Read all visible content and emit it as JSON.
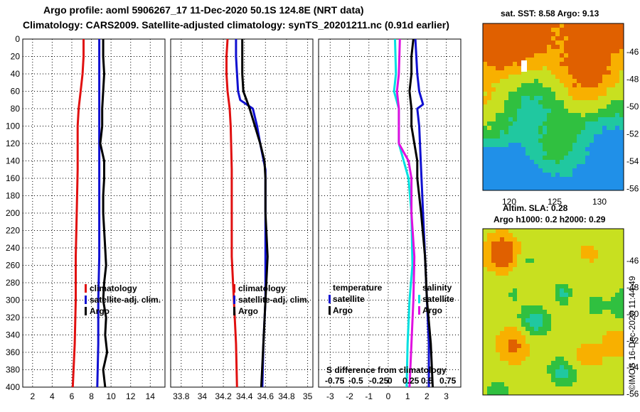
{
  "titles": {
    "line1": "Argo profile: aoml 5906267_17 11-Dec-2020 50.1S 124.8E (NRT data)",
    "line2": "Climatology: CARS2009. Satellite-adjusted climatology: synTS_20201211.nc (0.91d earlier)"
  },
  "colors": {
    "climatology": "#e01010",
    "satellite": "#1010d0",
    "argo": "#000000",
    "sat_salinity": "#00e0e0",
    "argo_salinity": "#e010e0"
  },
  "chart_data": [
    {
      "type": "line",
      "title": "Temperature profile",
      "xlim": [
        1,
        15.5
      ],
      "ylim": [
        0,
        400
      ],
      "xticks": [
        2,
        4,
        6,
        8,
        10,
        12,
        14
      ],
      "xtick_labels": [
        "2",
        "4",
        "6",
        "8",
        "10",
        "12",
        "14"
      ],
      "ytick_labels": [
        "0",
        "20",
        "40",
        "60",
        "80",
        "100",
        "120",
        "140",
        "160",
        "180",
        "200",
        "220",
        "240",
        "260",
        "280",
        "300",
        "320",
        "340",
        "360",
        "380",
        "400"
      ],
      "legend": [
        "climatology",
        "satellite-adj. clim.",
        "Argo"
      ],
      "series": [
        {
          "name": "climatology",
          "color": "#e01010",
          "depth": [
            0,
            20,
            40,
            60,
            80,
            100,
            150,
            200,
            250,
            300,
            350,
            400
          ],
          "values": [
            7.2,
            7.2,
            7.1,
            6.9,
            6.7,
            6.6,
            6.6,
            6.5,
            6.4,
            6.4,
            6.3,
            6.1
          ]
        },
        {
          "name": "satellite-adj. clim.",
          "color": "#1010d0",
          "depth": [
            0,
            50,
            100,
            150,
            200,
            250,
            300,
            350,
            400
          ],
          "values": [
            8.8,
            8.8,
            8.8,
            8.8,
            8.8,
            8.8,
            8.7,
            8.7,
            8.6
          ]
        },
        {
          "name": "Argo",
          "color": "#000000",
          "depth": [
            0,
            20,
            40,
            60,
            80,
            100,
            120,
            140,
            160,
            180,
            200,
            220,
            240,
            260,
            280,
            300,
            320,
            340,
            360,
            380,
            400
          ],
          "values": [
            9.2,
            9.2,
            9.3,
            9.2,
            9.1,
            9.1,
            8.9,
            9.3,
            9.3,
            9.2,
            9.2,
            9.3,
            9.4,
            9.5,
            9.3,
            9.2,
            9.5,
            9.4,
            9.6,
            9.2,
            9.4
          ]
        }
      ]
    },
    {
      "type": "line",
      "title": "Salinity profile",
      "xlim": [
        33.7,
        35.05
      ],
      "ylim": [
        0,
        400
      ],
      "xticks": [
        33.8,
        34,
        34.2,
        34.4,
        34.6,
        34.8,
        35
      ],
      "xtick_labels": [
        "33.8",
        "34",
        "34.2",
        "34.4",
        "34.6",
        "34.8",
        "35"
      ],
      "legend": [
        "climatology",
        "satellite-adj. clim.",
        "Argo"
      ],
      "series": [
        {
          "name": "climatology",
          "color": "#e01010",
          "depth": [
            0,
            20,
            40,
            60,
            80,
            100,
            150,
            200,
            250,
            300,
            350,
            400
          ],
          "values": [
            34.24,
            34.23,
            34.23,
            34.24,
            34.26,
            34.27,
            34.28,
            34.28,
            34.28,
            34.3,
            34.32,
            34.33
          ]
        },
        {
          "name": "satellite-adj. clim.",
          "color": "#1010d0",
          "depth": [
            0,
            20,
            40,
            60,
            70,
            80,
            100,
            120,
            150,
            200,
            250,
            300,
            350,
            400
          ],
          "values": [
            34.32,
            34.32,
            34.33,
            34.34,
            34.36,
            34.48,
            34.52,
            34.55,
            34.6,
            34.6,
            34.6,
            34.6,
            34.58,
            34.57
          ]
        },
        {
          "name": "Argo",
          "color": "#000000",
          "depth": [
            0,
            20,
            40,
            60,
            70,
            80,
            100,
            120,
            140,
            160,
            200,
            250,
            300,
            350,
            400
          ],
          "values": [
            34.38,
            34.38,
            34.38,
            34.39,
            34.42,
            34.45,
            34.5,
            34.55,
            34.59,
            34.6,
            34.6,
            34.62,
            34.6,
            34.58,
            34.56
          ]
        }
      ]
    },
    {
      "type": "line",
      "title": "Difference from climatology",
      "xlim": [
        -3.6,
        3.75
      ],
      "ylim": [
        0,
        400
      ],
      "xticks": [
        -3,
        -2,
        -1,
        0,
        1,
        2,
        3
      ],
      "xtick_labels": [
        "-3",
        "-2",
        "-1",
        "0",
        "1",
        "2",
        "3"
      ],
      "legend_temperature": {
        "heading": "temperature",
        "items": [
          "satellite",
          "Argo"
        ]
      },
      "legend_salinity": {
        "heading": "salinity",
        "items": [
          "satellite",
          "Argo"
        ]
      },
      "scale_label": "S difference from climatology",
      "scale_ticks": [
        "-0.75",
        "-0.5",
        "-0.25",
        "0",
        "0.25",
        "0.5",
        "0.75"
      ],
      "series": [
        {
          "name": "temperature satellite",
          "color": "#1010d0",
          "depth": [
            0,
            40,
            60,
            75,
            80,
            100,
            150,
            200,
            250,
            300,
            350,
            400
          ],
          "values": [
            1.4,
            1.5,
            1.6,
            1.8,
            1.5,
            1.6,
            1.7,
            1.8,
            1.9,
            2.0,
            2.1,
            2.1
          ]
        },
        {
          "name": "temperature Argo",
          "color": "#000000",
          "depth": [
            0,
            20,
            40,
            60,
            80,
            100,
            140,
            160,
            200,
            250,
            300,
            350,
            400
          ],
          "values": [
            1.3,
            1.2,
            1.2,
            1.1,
            1.2,
            1.2,
            1.5,
            1.5,
            1.7,
            1.9,
            2.0,
            2.2,
            2.3
          ]
        },
        {
          "name": "salinity satellite",
          "color": "#00e0e0",
          "depth": [
            0,
            40,
            60,
            80,
            120,
            160,
            200,
            260,
            300,
            350,
            400
          ],
          "values": [
            0.35,
            0.4,
            0.3,
            0.55,
            0.55,
            1.05,
            1.2,
            1.25,
            1.1,
            1.0,
            0.95
          ]
        },
        {
          "name": "salinity Argo",
          "color": "#e010e0",
          "depth": [
            0,
            40,
            60,
            80,
            120,
            140,
            160,
            200,
            250,
            300,
            350,
            400
          ],
          "values": [
            0.6,
            0.55,
            0.45,
            0.55,
            0.55,
            1.05,
            1.2,
            1.2,
            1.35,
            1.3,
            1.2,
            1.1
          ]
        }
      ]
    },
    {
      "type": "heatmap",
      "title": "sat. SST: 8.58 Argo: 9.13",
      "x_ticks": [
        "120",
        "125",
        "130"
      ],
      "y_ticks": [
        "-46",
        "-48",
        "-50",
        "-52",
        "-54",
        "-56"
      ]
    },
    {
      "type": "heatmap",
      "title": "Altim. SLA: 0.28",
      "subtitle": "Argo h1000: 0.2 h2000: 0.29",
      "y_ticks": [
        "-46",
        "-48",
        "-50",
        "-52",
        "-54",
        "-56"
      ]
    }
  ],
  "credit": "©IMOS 16-Dec-2020 11:44:49"
}
